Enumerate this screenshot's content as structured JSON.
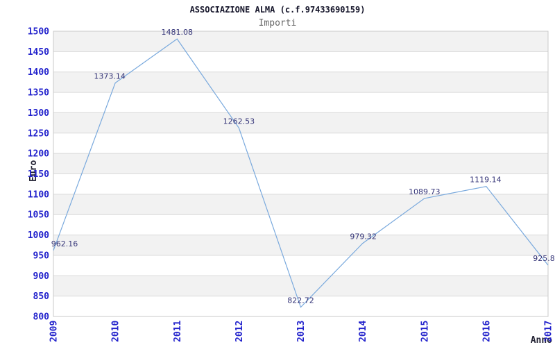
{
  "header": {
    "title": "ASSOCIAZIONE ALMA (c.f.97433690159)",
    "subtitle": "Importi"
  },
  "chart_data": {
    "type": "line",
    "title": "ASSOCIAZIONE ALMA (c.f.97433690159)",
    "subtitle": "Importi",
    "xlabel": "Anno",
    "ylabel": "Euro",
    "categories": [
      "2009",
      "2010",
      "2011",
      "2012",
      "2013",
      "2014",
      "2015",
      "2016",
      "2017"
    ],
    "series": [
      {
        "name": "Importi",
        "values": [
          962.16,
          1373.14,
          1481.08,
          1262.53,
          822.72,
          979.32,
          1089.73,
          1119.14,
          925.8
        ]
      }
    ],
    "point_labels": [
      "962.16",
      "1373.14",
      "1481.08",
      "1262.53",
      "822.72",
      "979.32",
      "1089.73",
      "1119.14",
      "925.8"
    ],
    "label_dx": [
      16,
      -8,
      0,
      0,
      0,
      1,
      0,
      -1,
      -6
    ],
    "ylim": [
      800,
      1500
    ],
    "ytick_step": 50,
    "grid": true,
    "legend": "none",
    "banded_background": true,
    "colors": {
      "line": "#79a9dd",
      "tick_label": "#2222cc",
      "point_label": "#333377",
      "band": "#f2f2f2",
      "gridline": "#d9d9d9",
      "plot_border": "#c9c9c9",
      "title": "#15152a",
      "subtitle": "#666666",
      "axis_title": "#222233",
      "background": "#ffffff"
    }
  }
}
